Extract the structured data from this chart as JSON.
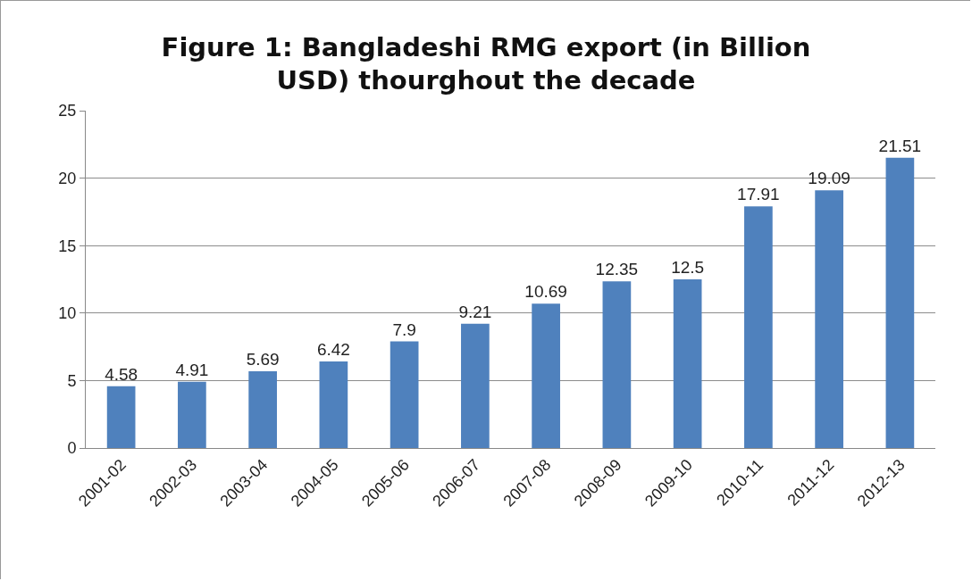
{
  "chart_data": {
    "type": "bar",
    "title": "Figure 1: Bangladeshi RMG export (in Billion USD) thourghout the decade",
    "categories": [
      "2001-02",
      "2002-03",
      "2003-04",
      "2004-05",
      "2005-06",
      "2006-07",
      "2007-08",
      "2008-09",
      "2009-10",
      "2010-11",
      "2011-12",
      "2012-13"
    ],
    "values": [
      4.58,
      4.91,
      5.69,
      6.42,
      7.9,
      9.21,
      10.69,
      12.35,
      12.5,
      17.91,
      19.09,
      21.51
    ],
    "color": "#4f81bd",
    "ylim": [
      0,
      25
    ],
    "yticks": [
      0,
      5,
      10,
      15,
      20,
      25
    ],
    "grid": "y",
    "data_labels": true,
    "legend": false
  }
}
